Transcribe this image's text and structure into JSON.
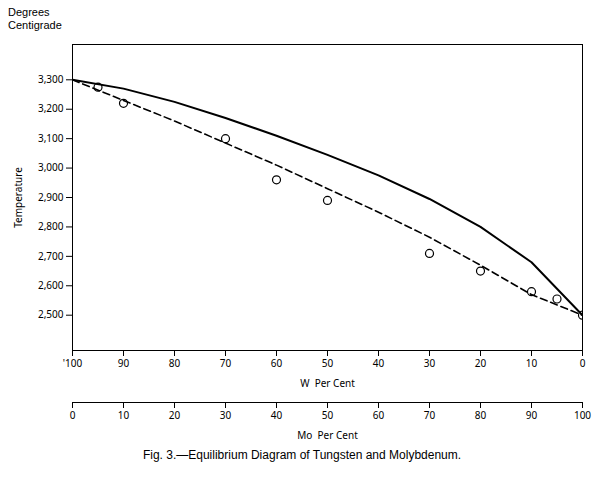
{
  "chart_data": {
    "type": "line",
    "title": "Fig. 3.—Equilibrium Diagram of Tungsten and Molybdenum.",
    "ylabel": "Temperature",
    "annotation": "Degrees\nCentigrade",
    "xlabel": "W  Per Cent",
    "x2label": "Mo  Per Cent",
    "xlim": [
      100,
      0
    ],
    "xticks": [
      {
        "value": 100,
        "label": "'100"
      },
      90,
      80,
      70,
      60,
      50,
      40,
      30,
      20,
      10,
      0
    ],
    "x2lim": [
      0,
      100
    ],
    "x2ticks": [
      0,
      10,
      20,
      30,
      40,
      50,
      60,
      70,
      80,
      90,
      100
    ],
    "ylim": [
      2380,
      3420
    ],
    "yticks": [
      {
        "value": 2500,
        "label": "2,500"
      },
      {
        "value": 2600,
        "label": "2,600"
      },
      {
        "value": 2700,
        "label": "2,700"
      },
      {
        "value": 2800,
        "label": "2,800"
      },
      {
        "value": 2900,
        "label": "2,900"
      },
      {
        "value": 3000,
        "label": "3,000"
      },
      {
        "value": 3100,
        "label": "3,100"
      },
      {
        "value": 3200,
        "label": "3,200"
      },
      {
        "value": 3300,
        "label": "3,300"
      }
    ],
    "series": [
      {
        "type": "line",
        "line_style": "solid",
        "color": "#000000",
        "x": [
          100,
          90,
          80,
          70,
          60,
          50,
          40,
          30,
          20,
          10,
          0
        ],
        "values": [
          3300,
          3270,
          3225,
          3170,
          3110,
          3045,
          2975,
          2895,
          2800,
          2680,
          2500
        ]
      },
      {
        "type": "line",
        "line_style": "dashed",
        "color": "#000000",
        "x": [
          100,
          90,
          80,
          70,
          60,
          50,
          40,
          30,
          20,
          10,
          0
        ],
        "values": [
          3300,
          3230,
          3160,
          3085,
          3010,
          2930,
          2850,
          2765,
          2670,
          2570,
          2500
        ]
      },
      {
        "type": "scatter",
        "marker": "circle",
        "color": "#000000",
        "x": [
          95,
          90,
          70,
          60,
          50,
          30,
          20,
          10,
          5,
          0
        ],
        "values": [
          3275,
          3220,
          3100,
          2960,
          2890,
          2710,
          2650,
          2580,
          2555,
          2500
        ]
      }
    ]
  }
}
